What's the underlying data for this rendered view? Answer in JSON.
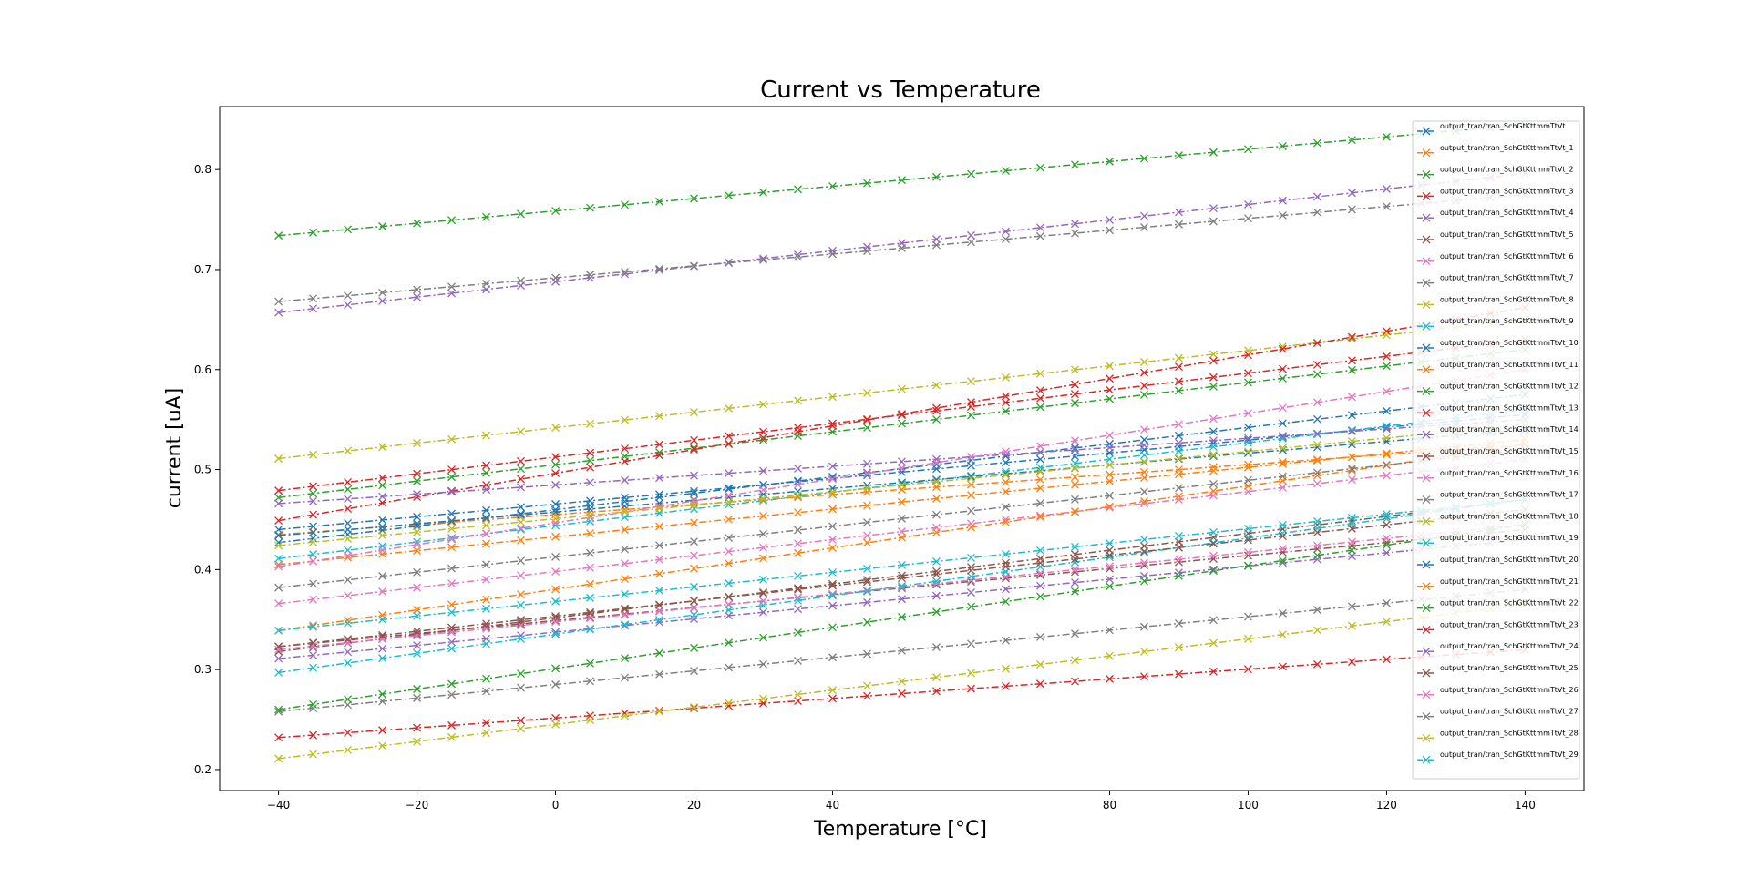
{
  "chart_data": {
    "type": "line",
    "title": "Current vs Temperature",
    "xlabel": "Temperature [°C]",
    "ylabel": "current [uA]",
    "xlim": [
      -48.5,
      148.5
    ],
    "ylim": [
      0.179,
      0.863
    ],
    "xticks": [
      -40,
      -20,
      0,
      20,
      40,
      80,
      100,
      120,
      140
    ],
    "yticks": [
      0.2,
      0.3,
      0.4,
      0.5,
      0.6,
      0.7,
      0.8
    ],
    "xtick_labels": [
      "−40",
      "−20",
      "0",
      "20",
      "40",
      "80",
      "100",
      "120",
      "140"
    ],
    "ytick_labels": [
      "0.2",
      "0.3",
      "0.4",
      "0.5",
      "0.6",
      "0.7",
      "0.8"
    ],
    "grid": false,
    "legend_position": "top-right",
    "marker": "x",
    "line_style": "dash-dot",
    "x": [
      -40,
      -35,
      -30,
      -25,
      -20,
      -15,
      -10,
      -5,
      0,
      5,
      10,
      15,
      20,
      25,
      30,
      35,
      40,
      45,
      50,
      55,
      60,
      65,
      70,
      75,
      80,
      85,
      90,
      95,
      100,
      105,
      110,
      115,
      120,
      125,
      130,
      135,
      140
    ],
    "series": [
      {
        "name": "output_tran/tran_SchGtKttmmTtVt",
        "color": "#1f77b4",
        "start": 0.44,
        "end": 0.555
      },
      {
        "name": "output_tran/tran_SchGtKttmmTtVt_1",
        "color": "#ff7f0e",
        "start": 0.405,
        "end": 0.53
      },
      {
        "name": "output_tran/tran_SchGtKttmmTtVt_2",
        "color": "#2ca02c",
        "start": 0.734,
        "end": 0.845
      },
      {
        "name": "output_tran/tran_SchGtKttmmTtVt_3",
        "color": "#d62728",
        "start": 0.232,
        "end": 0.32
      },
      {
        "name": "output_tran/tran_SchGtKttmmTtVt_4",
        "color": "#9467bd",
        "start": 0.657,
        "end": 0.796
      },
      {
        "name": "output_tran/tran_SchGtKttmmTtVt_5",
        "color": "#8c564b",
        "start": 0.318,
        "end": 0.47
      },
      {
        "name": "output_tran/tran_SchGtKttmmTtVt_6",
        "color": "#e377c2",
        "start": 0.366,
        "end": 0.51
      },
      {
        "name": "output_tran/tran_SchGtKttmmTtVt_7",
        "color": "#7f7f7f",
        "start": 0.668,
        "end": 0.775
      },
      {
        "name": "output_tran/tran_SchGtKttmmTtVt_8",
        "color": "#bcbd22",
        "start": 0.511,
        "end": 0.65
      },
      {
        "name": "output_tran/tran_SchGtKttmmTtVt_9",
        "color": "#17becf",
        "start": 0.411,
        "end": 0.56
      },
      {
        "name": "output_tran/tran_SchGtKttmmTtVt_10",
        "color": "#1f77b4",
        "start": 0.427,
        "end": 0.575
      },
      {
        "name": "output_tran/tran_SchGtKttmmTtVt_11",
        "color": "#ff7f0e",
        "start": 0.435,
        "end": 0.525
      },
      {
        "name": "output_tran/tran_SchGtKttmmTtVt_12",
        "color": "#2ca02c",
        "start": 0.472,
        "end": 0.62
      },
      {
        "name": "output_tran/tran_SchGtKttmmTtVt_13",
        "color": "#d62728",
        "start": 0.449,
        "end": 0.662
      },
      {
        "name": "output_tran/tran_SchGtKttmmTtVt_14",
        "color": "#9467bd",
        "start": 0.311,
        "end": 0.43
      },
      {
        "name": "output_tran/tran_SchGtKttmmTtVt_15",
        "color": "#8c564b",
        "start": 0.323,
        "end": 0.44
      },
      {
        "name": "output_tran/tran_SchGtKttmmTtVt_16",
        "color": "#e377c2",
        "start": 0.32,
        "end": 0.445
      },
      {
        "name": "output_tran/tran_SchGtKttmmTtVt_17",
        "color": "#7f7f7f",
        "start": 0.258,
        "end": 0.38
      },
      {
        "name": "output_tran/tran_SchGtKttmmTtVt_18",
        "color": "#bcbd22",
        "start": 0.211,
        "end": 0.365
      },
      {
        "name": "output_tran/tran_SchGtKttmmTtVt_19",
        "color": "#17becf",
        "start": 0.297,
        "end": 0.47
      },
      {
        "name": "output_tran/tran_SchGtKttmmTtVt_20",
        "color": "#1f77b4",
        "start": 0.434,
        "end": 0.54
      },
      {
        "name": "output_tran/tran_SchGtKttmmTtVt_21",
        "color": "#ff7f0e",
        "start": 0.339,
        "end": 0.525
      },
      {
        "name": "output_tran/tran_SchGtKttmmTtVt_22",
        "color": "#2ca02c",
        "start": 0.26,
        "end": 0.445
      },
      {
        "name": "output_tran/tran_SchGtKttmmTtVt_23",
        "color": "#d62728",
        "start": 0.479,
        "end": 0.63
      },
      {
        "name": "output_tran/tran_SchGtKttmmTtVt_24",
        "color": "#9467bd",
        "start": 0.466,
        "end": 0.55
      },
      {
        "name": "output_tran/tran_SchGtKttmmTtVt_25",
        "color": "#8c564b",
        "start": 0.323,
        "end": 0.46
      },
      {
        "name": "output_tran/tran_SchGtKttmmTtVt_26",
        "color": "#e377c2",
        "start": 0.403,
        "end": 0.6
      },
      {
        "name": "output_tran/tran_SchGtKttmmTtVt_27",
        "color": "#7f7f7f",
        "start": 0.382,
        "end": 0.52
      },
      {
        "name": "output_tran/tran_SchGtKttmmTtVt_28",
        "color": "#bcbd22",
        "start": 0.424,
        "end": 0.545
      },
      {
        "name": "output_tran/tran_SchGtKttmmTtVt_29",
        "color": "#17becf",
        "start": 0.339,
        "end": 0.47
      }
    ]
  }
}
